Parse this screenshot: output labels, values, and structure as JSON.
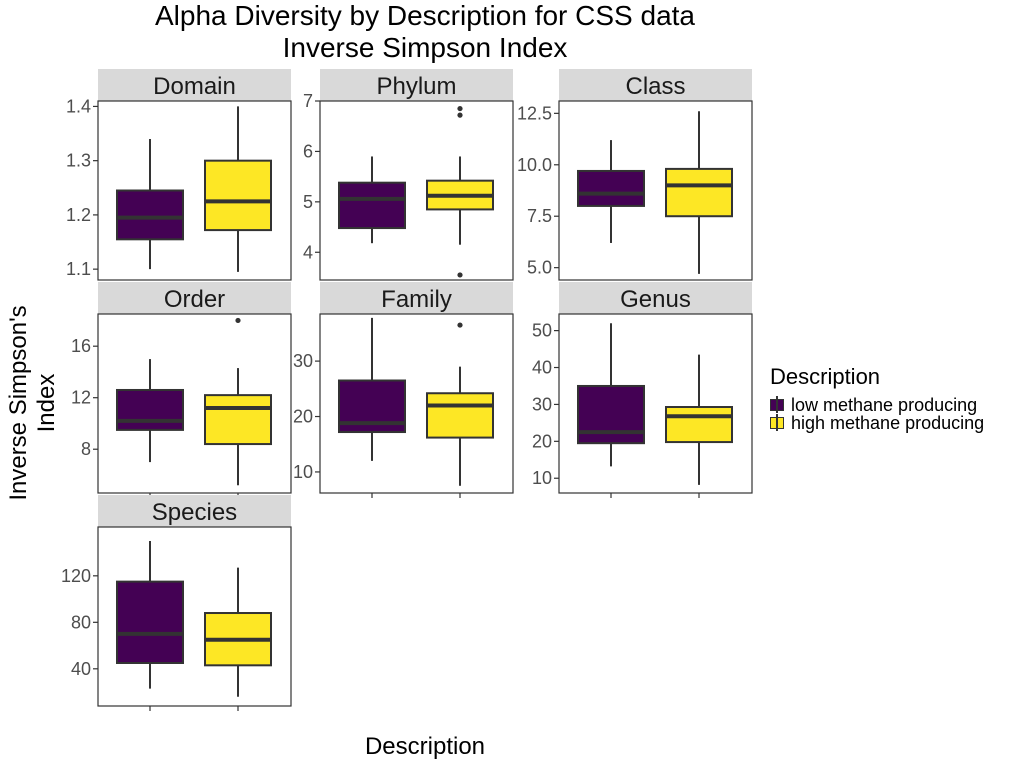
{
  "chart_data": {
    "type": "boxplot",
    "title": "Alpha Diversity by Description for CSS data",
    "subtitle": "Inverse Simpson Index",
    "xlabel": "Description",
    "ylabel": "Inverse Simpson's Index",
    "legend": {
      "title": "Description",
      "placement": "right",
      "entries": [
        {
          "name": "low methane producing",
          "color": "#440154"
        },
        {
          "name": "high methane producing",
          "color": "#FDE725"
        }
      ]
    },
    "grid": false,
    "facets": [
      {
        "label": "Domain",
        "ylim": [
          1.08,
          1.41
        ],
        "ticks": [
          "1.1",
          "1.2",
          "1.3",
          "1.4"
        ],
        "groups": [
          {
            "name": "low methane producing",
            "min": 1.1,
            "q1": 1.155,
            "median": 1.195,
            "q3": 1.245,
            "max": 1.34,
            "outliers": []
          },
          {
            "name": "high methane producing",
            "min": 1.095,
            "q1": 1.172,
            "median": 1.225,
            "q3": 1.3,
            "max": 1.4,
            "outliers": []
          }
        ]
      },
      {
        "label": "Phylum",
        "ylim": [
          3.45,
          7.0
        ],
        "ticks": [
          "4",
          "5",
          "6",
          "7"
        ],
        "groups": [
          {
            "name": "low methane producing",
            "min": 4.18,
            "q1": 4.48,
            "median": 5.06,
            "q3": 5.38,
            "max": 5.9,
            "outliers": []
          },
          {
            "name": "high methane producing",
            "min": 4.15,
            "q1": 4.85,
            "median": 5.12,
            "q3": 5.42,
            "max": 5.9,
            "outliers": [
              6.72,
              6.85,
              3.55
            ]
          }
        ]
      },
      {
        "label": "Class",
        "ylim": [
          4.4,
          13.1
        ],
        "ticks": [
          "5.0",
          "7.5",
          "10.0",
          "12.5"
        ],
        "groups": [
          {
            "name": "low methane producing",
            "min": 6.2,
            "q1": 8.0,
            "median": 8.6,
            "q3": 9.7,
            "max": 11.2,
            "outliers": []
          },
          {
            "name": "high methane producing",
            "min": 4.7,
            "q1": 7.5,
            "median": 9.0,
            "q3": 9.8,
            "max": 12.6,
            "outliers": []
          }
        ]
      },
      {
        "label": "Order",
        "ylim": [
          4.6,
          18.5
        ],
        "ticks": [
          "8",
          "12",
          "16"
        ],
        "groups": [
          {
            "name": "low methane producing",
            "min": 7.0,
            "q1": 9.5,
            "median": 10.2,
            "q3": 12.6,
            "max": 15.0,
            "outliers": []
          },
          {
            "name": "high methane producing",
            "min": 5.2,
            "q1": 8.4,
            "median": 11.2,
            "q3": 12.2,
            "max": 14.3,
            "outliers": [
              18.0
            ]
          }
        ]
      },
      {
        "label": "Family",
        "ylim": [
          6.2,
          38.5
        ],
        "ticks": [
          "10",
          "20",
          "30"
        ],
        "groups": [
          {
            "name": "low methane producing",
            "min": 12.0,
            "q1": 17.2,
            "median": 18.8,
            "q3": 26.5,
            "max": 37.8,
            "outliers": []
          },
          {
            "name": "high methane producing",
            "min": 7.5,
            "q1": 16.2,
            "median": 22.0,
            "q3": 24.2,
            "max": 29.0,
            "outliers": [
              36.5
            ]
          }
        ]
      },
      {
        "label": "Genus",
        "ylim": [
          6.0,
          54.5
        ],
        "ticks": [
          "10",
          "20",
          "30",
          "40",
          "50"
        ],
        "groups": [
          {
            "name": "low methane producing",
            "min": 13.2,
            "q1": 19.5,
            "median": 22.5,
            "q3": 35.0,
            "max": 52.0,
            "outliers": []
          },
          {
            "name": "high methane producing",
            "min": 8.2,
            "q1": 19.8,
            "median": 26.8,
            "q3": 29.3,
            "max": 43.5,
            "outliers": []
          }
        ]
      },
      {
        "label": "Species",
        "ylim": [
          8.0,
          162.0
        ],
        "ticks": [
          "40",
          "80",
          "120"
        ],
        "groups": [
          {
            "name": "low methane producing",
            "min": 23.0,
            "q1": 45.0,
            "median": 70.0,
            "q3": 115.0,
            "max": 150.0,
            "outliers": []
          },
          {
            "name": "high methane producing",
            "min": 16.0,
            "q1": 43.0,
            "median": 65.0,
            "q3": 88.0,
            "max": 127.0,
            "outliers": []
          }
        ]
      }
    ]
  }
}
